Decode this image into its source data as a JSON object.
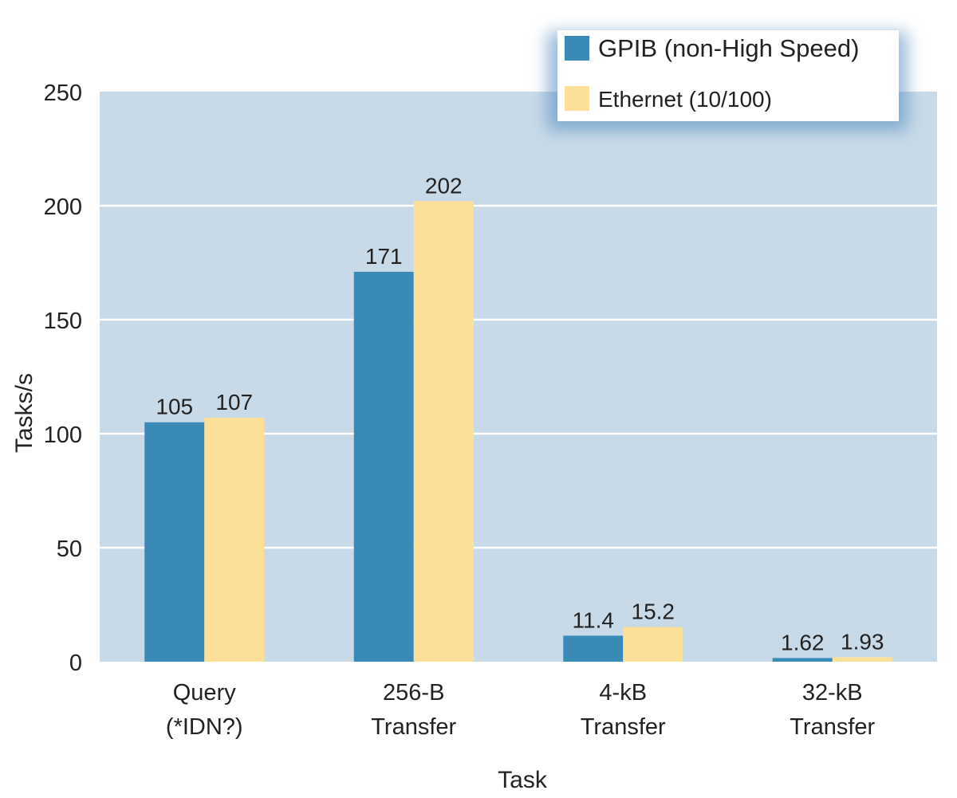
{
  "chart_data": {
    "type": "bar",
    "categories": [
      [
        "Query",
        "(*IDN?)"
      ],
      [
        "256-B",
        "Transfer"
      ],
      [
        "4-kB",
        "Transfer"
      ],
      [
        "32-kB",
        "Transfer"
      ]
    ],
    "series": [
      {
        "name": "GPIB (non-High Speed)",
        "values": [
          105,
          171,
          11.4,
          1.62
        ],
        "labels": [
          "105",
          "171",
          "11.4",
          "1.62"
        ],
        "color": "#3a8ab8"
      },
      {
        "name": "Ethernet (10/100)",
        "values": [
          107,
          202,
          15.2,
          1.93
        ],
        "labels": [
          "107",
          "202",
          "15.2",
          "1.93"
        ],
        "color": "#fce098"
      }
    ],
    "xlabel": "Task",
    "ylabel": "Tasks/s",
    "ylim": [
      0,
      250
    ],
    "yticks": [
      "0",
      "50",
      "100",
      "150",
      "200",
      "250"
    ],
    "grid": true,
    "legend_position": "top-right",
    "plot_background": "#c8dae8",
    "gridline_color": "#ffffff"
  }
}
